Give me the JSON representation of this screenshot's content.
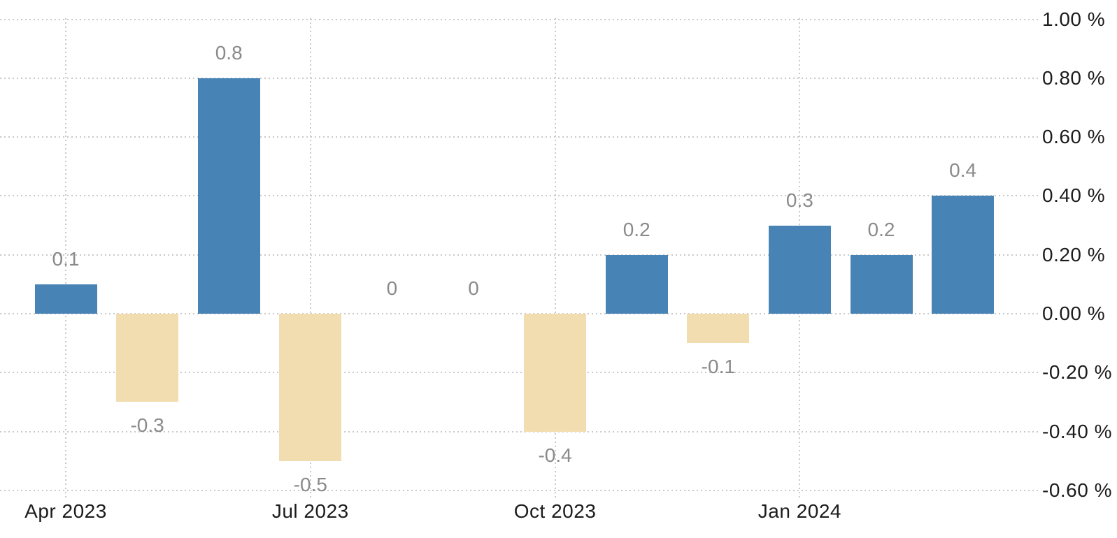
{
  "chart_data": {
    "type": "bar",
    "title": "",
    "xlabel": "",
    "ylabel": "",
    "categories": [
      "Apr 2023",
      "May 2023",
      "Jun 2023",
      "Jul 2023",
      "Aug 2023",
      "Sep 2023",
      "Oct 2023",
      "Nov 2023",
      "Dec 2023",
      "Jan 2024",
      "Feb 2024",
      "Mar 2024"
    ],
    "values": [
      0.1,
      -0.3,
      0.8,
      -0.5,
      0,
      0,
      -0.4,
      0.2,
      -0.1,
      0.3,
      0.2,
      0.4
    ],
    "bar_value_labels": [
      "0.1",
      "-0.3",
      "0.8",
      "-0.5",
      "0",
      "0",
      "-0.4",
      "0.2",
      "-0.1",
      "0.3",
      "0.2",
      "0.4"
    ],
    "x_ticks": [
      {
        "index": 0,
        "label": "Apr 2023"
      },
      {
        "index": 3,
        "label": "Jul 2023"
      },
      {
        "index": 6,
        "label": "Oct 2023"
      },
      {
        "index": 9,
        "label": "Jan 2024"
      }
    ],
    "y_ticks": [
      {
        "value": 1.0,
        "label": "1.00 %"
      },
      {
        "value": 0.8,
        "label": "0.80 %"
      },
      {
        "value": 0.6,
        "label": "0.60 %"
      },
      {
        "value": 0.4,
        "label": "0.40 %"
      },
      {
        "value": 0.2,
        "label": "0.20 %"
      },
      {
        "value": 0.0,
        "label": "0.00 %"
      },
      {
        "value": -0.2,
        "label": "-0.20 %"
      },
      {
        "value": -0.4,
        "label": "-0.40 %"
      },
      {
        "value": -0.6,
        "label": "-0.60 %"
      }
    ],
    "ylim": [
      -0.6,
      1.0
    ],
    "grid": true,
    "legend_position": "none",
    "colors": {
      "positive_bar": "#4783b4",
      "negative_bar": "#f2ddb0",
      "grid": "#c9c9c9",
      "axis_label": "#1c1c1c",
      "value_label": "#8a8a8a",
      "background": "#ffffff"
    }
  }
}
